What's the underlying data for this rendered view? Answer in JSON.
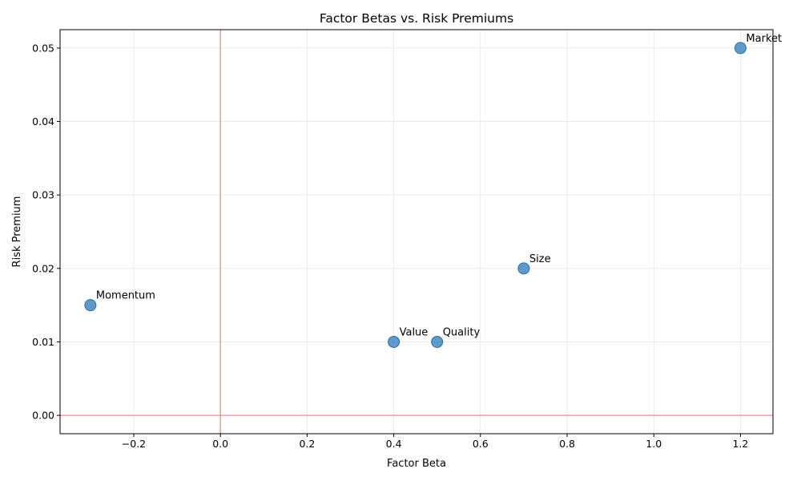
{
  "chart_data": {
    "type": "scatter",
    "title": "Factor Betas vs. Risk Premiums",
    "xlabel": "Factor Beta",
    "ylabel": "Risk Premium",
    "xlim": [
      -0.37,
      1.275
    ],
    "ylim": [
      -0.0025,
      0.0525
    ],
    "xticks": [
      -0.2,
      0.0,
      0.2,
      0.4,
      0.6,
      0.8,
      1.0,
      1.2
    ],
    "xtick_labels": [
      "−0.2",
      "0.0",
      "0.2",
      "0.4",
      "0.6",
      "0.8",
      "1.0",
      "1.2"
    ],
    "yticks": [
      0.0,
      0.01,
      0.02,
      0.03,
      0.04,
      0.05
    ],
    "ytick_labels": [
      "0.00",
      "0.01",
      "0.02",
      "0.03",
      "0.04",
      "0.05"
    ],
    "grid": true,
    "reference_lines": {
      "x": 0,
      "y": 0,
      "color": "#f28b8b"
    },
    "marker_color": "#3b84bf",
    "points": [
      {
        "label": "Market",
        "x": 1.2,
        "y": 0.05
      },
      {
        "label": "Size",
        "x": 0.7,
        "y": 0.02
      },
      {
        "label": "Value",
        "x": 0.4,
        "y": 0.01
      },
      {
        "label": "Momentum",
        "x": -0.3,
        "y": 0.015
      },
      {
        "label": "Quality",
        "x": 0.5,
        "y": 0.01
      }
    ]
  }
}
